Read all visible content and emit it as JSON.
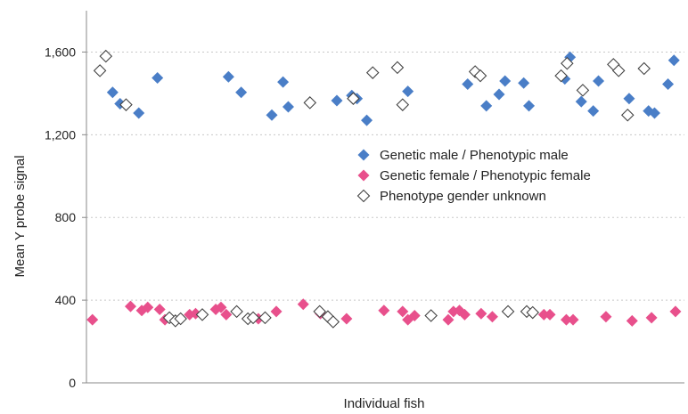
{
  "chart_data": {
    "type": "scatter",
    "xlabel": "Individual fish",
    "ylabel": "Mean Y probe signal",
    "ylim": [
      0,
      1800
    ],
    "xlim": [
      0,
      80
    ],
    "yticks": [
      0,
      400,
      800,
      1200,
      1600
    ],
    "ytick_labels": [
      "0",
      "400",
      "800",
      "1,200",
      "1,600"
    ],
    "grid": true,
    "legend": {
      "placement": "center-right"
    },
    "series": [
      {
        "name": "Genetic male / Phenotypic male",
        "color": "#4a7ec7",
        "marker": "diamond-filled",
        "points": [
          {
            "x": 3.5,
            "y": 1405
          },
          {
            "x": 4.5,
            "y": 1350
          },
          {
            "x": 7,
            "y": 1305
          },
          {
            "x": 9.5,
            "y": 1475
          },
          {
            "x": 19,
            "y": 1480
          },
          {
            "x": 20.7,
            "y": 1405
          },
          {
            "x": 24.8,
            "y": 1295
          },
          {
            "x": 26.3,
            "y": 1455
          },
          {
            "x": 27,
            "y": 1335
          },
          {
            "x": 33.5,
            "y": 1365
          },
          {
            "x": 35.5,
            "y": 1390
          },
          {
            "x": 36.2,
            "y": 1375
          },
          {
            "x": 37.5,
            "y": 1270
          },
          {
            "x": 43,
            "y": 1410
          },
          {
            "x": 51,
            "y": 1445
          },
          {
            "x": 53.5,
            "y": 1340
          },
          {
            "x": 55.2,
            "y": 1395
          },
          {
            "x": 56,
            "y": 1460
          },
          {
            "x": 58.5,
            "y": 1450
          },
          {
            "x": 59.2,
            "y": 1340
          },
          {
            "x": 64,
            "y": 1470
          },
          {
            "x": 64.7,
            "y": 1575
          },
          {
            "x": 66.2,
            "y": 1360
          },
          {
            "x": 67.8,
            "y": 1315
          },
          {
            "x": 68.5,
            "y": 1460
          },
          {
            "x": 72.6,
            "y": 1375
          },
          {
            "x": 75.2,
            "y": 1315
          },
          {
            "x": 76,
            "y": 1305
          },
          {
            "x": 77.8,
            "y": 1445
          },
          {
            "x": 78.6,
            "y": 1560
          }
        ]
      },
      {
        "name": "Genetic female / Phenotypic female",
        "color": "#e8508c",
        "marker": "diamond-filled",
        "points": [
          {
            "x": 0.8,
            "y": 305
          },
          {
            "x": 5.9,
            "y": 370
          },
          {
            "x": 7.4,
            "y": 350
          },
          {
            "x": 8.2,
            "y": 365
          },
          {
            "x": 9.8,
            "y": 355
          },
          {
            "x": 10.5,
            "y": 305
          },
          {
            "x": 13.8,
            "y": 330
          },
          {
            "x": 14.6,
            "y": 335
          },
          {
            "x": 17.3,
            "y": 355
          },
          {
            "x": 18,
            "y": 365
          },
          {
            "x": 18.7,
            "y": 330
          },
          {
            "x": 23,
            "y": 310
          },
          {
            "x": 25.4,
            "y": 345
          },
          {
            "x": 29,
            "y": 380
          },
          {
            "x": 31.3,
            "y": 335
          },
          {
            "x": 34.8,
            "y": 310
          },
          {
            "x": 39.8,
            "y": 350
          },
          {
            "x": 42.3,
            "y": 345
          },
          {
            "x": 43,
            "y": 305
          },
          {
            "x": 43.9,
            "y": 325
          },
          {
            "x": 48.4,
            "y": 305
          },
          {
            "x": 49.1,
            "y": 345
          },
          {
            "x": 49.9,
            "y": 350
          },
          {
            "x": 50.6,
            "y": 330
          },
          {
            "x": 52.8,
            "y": 335
          },
          {
            "x": 54.3,
            "y": 320
          },
          {
            "x": 61.2,
            "y": 330
          },
          {
            "x": 62,
            "y": 330
          },
          {
            "x": 64.2,
            "y": 305
          },
          {
            "x": 65.1,
            "y": 305
          },
          {
            "x": 69.5,
            "y": 320
          },
          {
            "x": 73,
            "y": 300
          },
          {
            "x": 75.6,
            "y": 315
          },
          {
            "x": 78.8,
            "y": 345
          }
        ]
      },
      {
        "name": "Phenotype gender unknown",
        "color": "#444444",
        "marker": "diamond-open",
        "points": [
          {
            "x": 1.8,
            "y": 1510
          },
          {
            "x": 2.6,
            "y": 1580
          },
          {
            "x": 5.3,
            "y": 1345
          },
          {
            "x": 11.1,
            "y": 315
          },
          {
            "x": 11.9,
            "y": 300
          },
          {
            "x": 12.6,
            "y": 310
          },
          {
            "x": 15.5,
            "y": 330
          },
          {
            "x": 20.1,
            "y": 345
          },
          {
            "x": 21.6,
            "y": 310
          },
          {
            "x": 22.3,
            "y": 315
          },
          {
            "x": 23.9,
            "y": 315
          },
          {
            "x": 29.9,
            "y": 1355
          },
          {
            "x": 31.2,
            "y": 345
          },
          {
            "x": 32.3,
            "y": 320
          },
          {
            "x": 33,
            "y": 295
          },
          {
            "x": 35.7,
            "y": 1375
          },
          {
            "x": 38.3,
            "y": 1500
          },
          {
            "x": 41.6,
            "y": 1525
          },
          {
            "x": 42.3,
            "y": 1345
          },
          {
            "x": 46.1,
            "y": 325
          },
          {
            "x": 52,
            "y": 1505
          },
          {
            "x": 52.7,
            "y": 1485
          },
          {
            "x": 56.4,
            "y": 345
          },
          {
            "x": 58.9,
            "y": 345
          },
          {
            "x": 59.7,
            "y": 340
          },
          {
            "x": 63.5,
            "y": 1485
          },
          {
            "x": 64.3,
            "y": 1545
          },
          {
            "x": 66.4,
            "y": 1415
          },
          {
            "x": 70.5,
            "y": 1540
          },
          {
            "x": 71.2,
            "y": 1510
          },
          {
            "x": 72.4,
            "y": 1295
          },
          {
            "x": 74.6,
            "y": 1520
          }
        ]
      }
    ]
  }
}
